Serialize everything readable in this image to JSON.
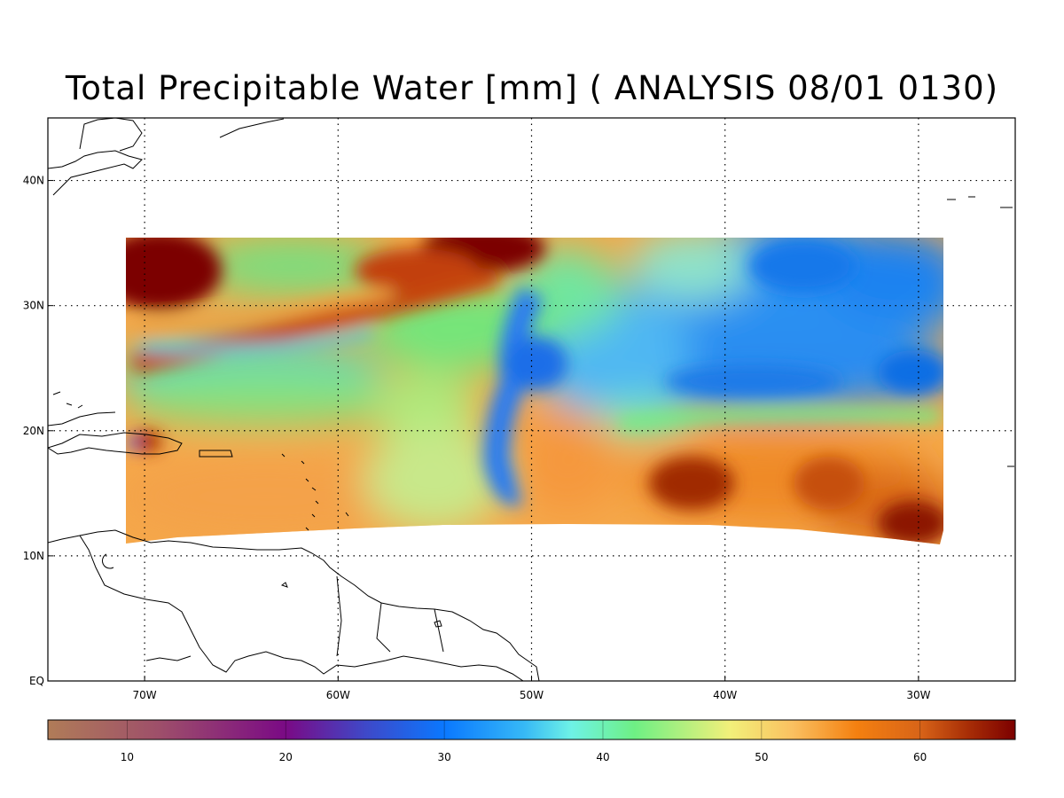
{
  "title": "Total Precipitable Water [mm]  ( ANALYSIS 08/01 0130)",
  "map": {
    "lon_range": [
      -75,
      -25
    ],
    "lat_range": [
      0,
      45
    ],
    "lon_ticks": [
      {
        "value": -70,
        "label": "70W"
      },
      {
        "value": -60,
        "label": "60W"
      },
      {
        "value": -50,
        "label": "50W"
      },
      {
        "value": -40,
        "label": "40W"
      },
      {
        "value": -30,
        "label": "30W"
      }
    ],
    "lat_ticks": [
      {
        "value": 0,
        "label": "EQ"
      },
      {
        "value": 10,
        "label": "10N"
      },
      {
        "value": 20,
        "label": "20N"
      },
      {
        "value": 30,
        "label": "30N"
      },
      {
        "value": 40,
        "label": "40N"
      }
    ],
    "gridlines": "dotted",
    "data_extent": {
      "lon": [
        -71,
        -29
      ],
      "lat_north": 35.5,
      "lat_south_west": 11,
      "lat_south_mid": 12.5,
      "lat_south_east": 11
    },
    "features": [
      {
        "name": "very-high-tpw-west",
        "lon": -69.5,
        "lat": 32.5,
        "value": 64
      },
      {
        "name": "very-high-tpw-north-central",
        "lon": -53,
        "lat": 34,
        "value": 64
      },
      {
        "name": "high-tpw-band",
        "lon": -58,
        "lat": 29,
        "value": 56
      },
      {
        "name": "dry-pocket-east",
        "lon": -35,
        "lat": 28,
        "value": 30
      },
      {
        "name": "dry-tongue-central",
        "lon": -50.5,
        "lat": 24,
        "value": 30
      },
      {
        "name": "moist-tropics-east",
        "lon": -41.5,
        "lat": 15.5,
        "value": 63
      },
      {
        "name": "moist-tropics-far-east",
        "lon": -30,
        "lat": 11.5,
        "value": 63
      }
    ]
  },
  "colorbar": {
    "min": 5,
    "max": 66,
    "labels": [
      {
        "value": 10,
        "label": "10"
      },
      {
        "value": 20,
        "label": "20"
      },
      {
        "value": 30,
        "label": "30"
      },
      {
        "value": 40,
        "label": "40"
      },
      {
        "value": 50,
        "label": "50"
      },
      {
        "value": 60,
        "label": "60"
      }
    ],
    "stops": [
      {
        "value": 5,
        "color": "#b07c58"
      },
      {
        "value": 12,
        "color": "#9e4f6a"
      },
      {
        "value": 20,
        "color": "#7a0a85"
      },
      {
        "value": 25,
        "color": "#3f48c8"
      },
      {
        "value": 30,
        "color": "#0a78ff"
      },
      {
        "value": 35,
        "color": "#36b8f6"
      },
      {
        "value": 38,
        "color": "#6ef2e6"
      },
      {
        "value": 42,
        "color": "#6ef084"
      },
      {
        "value": 48,
        "color": "#f2f07a"
      },
      {
        "value": 52,
        "color": "#fac060"
      },
      {
        "value": 56,
        "color": "#f48010"
      },
      {
        "value": 60,
        "color": "#d86418"
      },
      {
        "value": 63,
        "color": "#a82e06"
      },
      {
        "value": 66,
        "color": "#7c0000"
      }
    ]
  }
}
